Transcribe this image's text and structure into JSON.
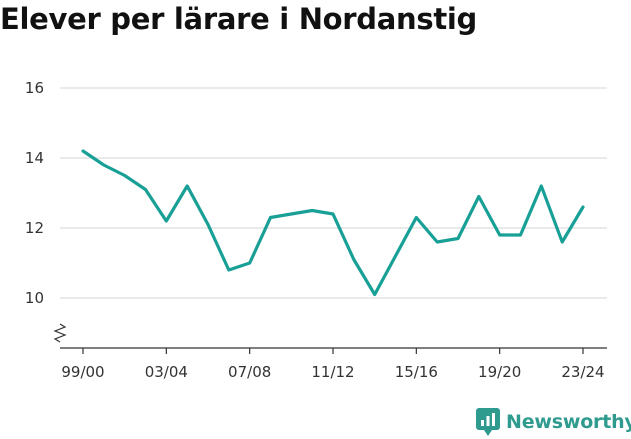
{
  "title": "Elever per lärare i Nordanstig",
  "brand": {
    "name": "Newsworthy"
  },
  "colors": {
    "line": "#18a096",
    "grid": "#dddddd",
    "axis": "#333333",
    "brand": "#2f9b8f"
  },
  "chart_data": {
    "type": "line",
    "title": "Elever per lärare i Nordanstig",
    "xlabel": "",
    "ylabel": "",
    "ylim": [
      8.7,
      16.3
    ],
    "y_axis_break": true,
    "grid": true,
    "x_tick_labels": [
      "99/00",
      "03/04",
      "07/08",
      "11/12",
      "15/16",
      "19/20",
      "23/24"
    ],
    "y_tick_labels": [
      "10",
      "12",
      "14",
      "16"
    ],
    "y_ticks": [
      10,
      12,
      14,
      16
    ],
    "x": [
      "99/00",
      "00/01",
      "01/02",
      "02/03",
      "03/04",
      "04/05",
      "05/06",
      "06/07",
      "07/08",
      "08/09",
      "09/10",
      "10/11",
      "11/12",
      "12/13",
      "13/14",
      "14/15",
      "15/16",
      "16/17",
      "17/18",
      "18/19",
      "19/20",
      "20/21",
      "21/22",
      "22/23",
      "23/24"
    ],
    "series": [
      {
        "values": [
          14.2,
          13.8,
          13.5,
          13.1,
          12.2,
          13.2,
          12.1,
          10.8,
          11.0,
          12.3,
          12.4,
          12.5,
          12.4,
          11.1,
          10.1,
          11.2,
          12.3,
          11.6,
          11.7,
          12.9,
          11.8,
          11.8,
          13.2,
          11.6,
          12.6
        ]
      }
    ]
  }
}
